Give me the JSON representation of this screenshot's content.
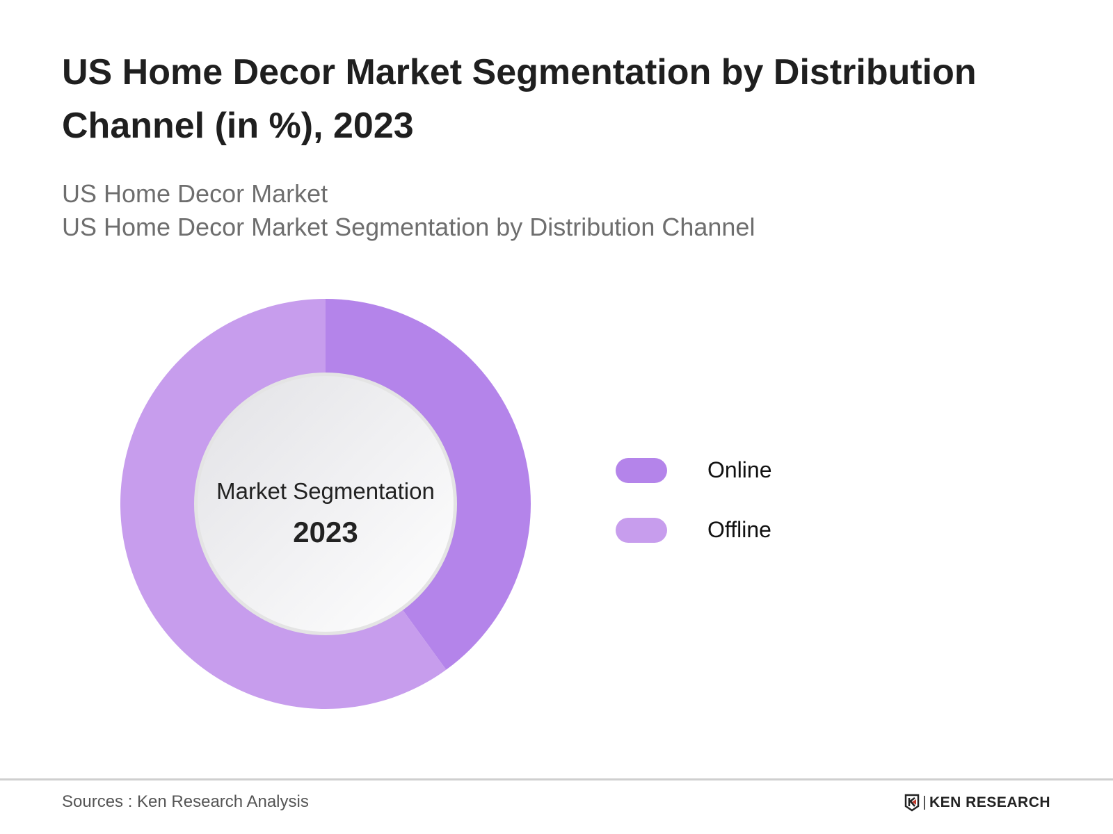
{
  "title": "US Home Decor Market Segmentation by Distribution Channel (in %), 2023",
  "subtitle_1": "US Home Decor Market",
  "subtitle_2": "US Home Decor Market Segmentation by Distribution Channel",
  "chart_data": {
    "type": "pie",
    "variant": "donut",
    "title": "US Home Decor Market Segmentation by Distribution Channel (in %), 2023",
    "center_label": "Market Segmentation",
    "center_year": "2023",
    "categories": [
      "Online",
      "Offline"
    ],
    "values": [
      40,
      60
    ],
    "colors": [
      "#b484ea",
      "#c79ded"
    ],
    "legend_position": "right"
  },
  "footer": {
    "source": "Sources : Ken Research Analysis",
    "logo_text": "KEN RESEARCH"
  }
}
